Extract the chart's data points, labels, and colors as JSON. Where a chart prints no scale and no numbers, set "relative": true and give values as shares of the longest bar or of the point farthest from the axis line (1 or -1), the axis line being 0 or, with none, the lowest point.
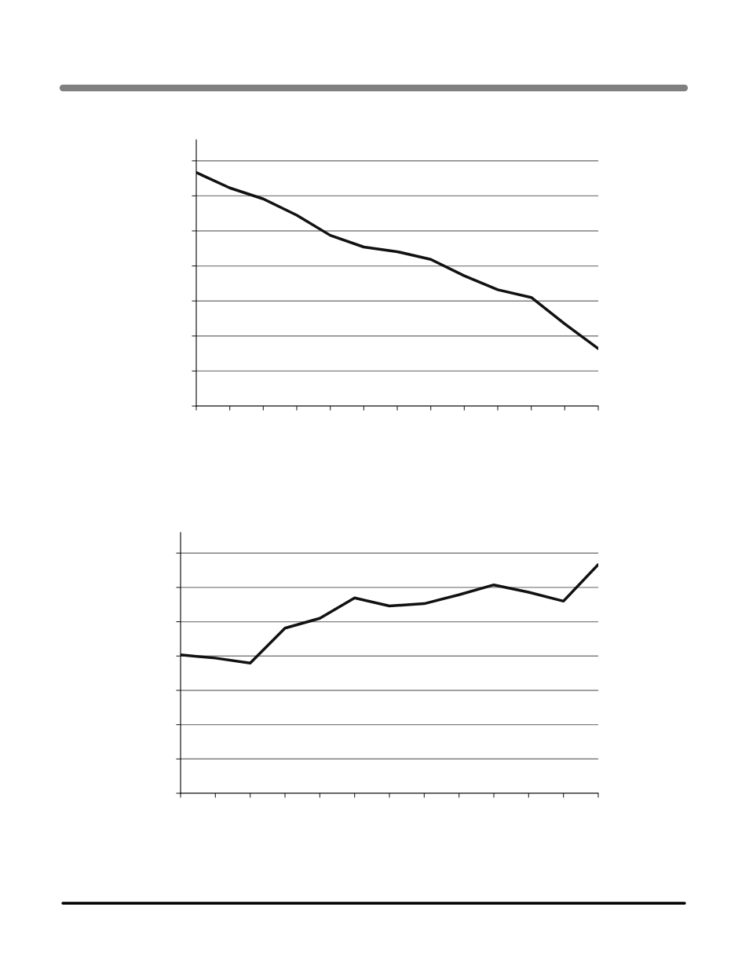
{
  "chart_data": [
    {
      "type": "line",
      "relative": true,
      "categories": [
        null,
        null,
        null,
        null,
        null,
        null,
        null,
        null,
        null,
        null,
        null,
        null,
        null
      ],
      "series": [
        {
          "color": "#111111",
          "values": [
            1,
            0.934,
            0.887,
            0.817,
            0.731,
            0.681,
            0.661,
            0.628,
            0.558,
            0.498,
            0.465,
            0.352,
            0.246
          ]
        }
      ],
      "grid": "y",
      "marker": "none",
      "line_style": "solid"
    },
    {
      "type": "line",
      "relative": true,
      "categories": [
        null,
        null,
        null,
        null,
        null,
        null,
        null,
        null,
        null,
        null,
        null,
        null,
        null
      ],
      "series": [
        {
          "color": "#111111",
          "values": [
            0.605,
            0.591,
            0.569,
            0.722,
            0.765,
            0.854,
            0.819,
            0.829,
            0.868,
            0.911,
            0.879,
            0.84,
            1
          ]
        }
      ],
      "grid": "y",
      "marker": "none",
      "line_style": "solid"
    }
  ]
}
